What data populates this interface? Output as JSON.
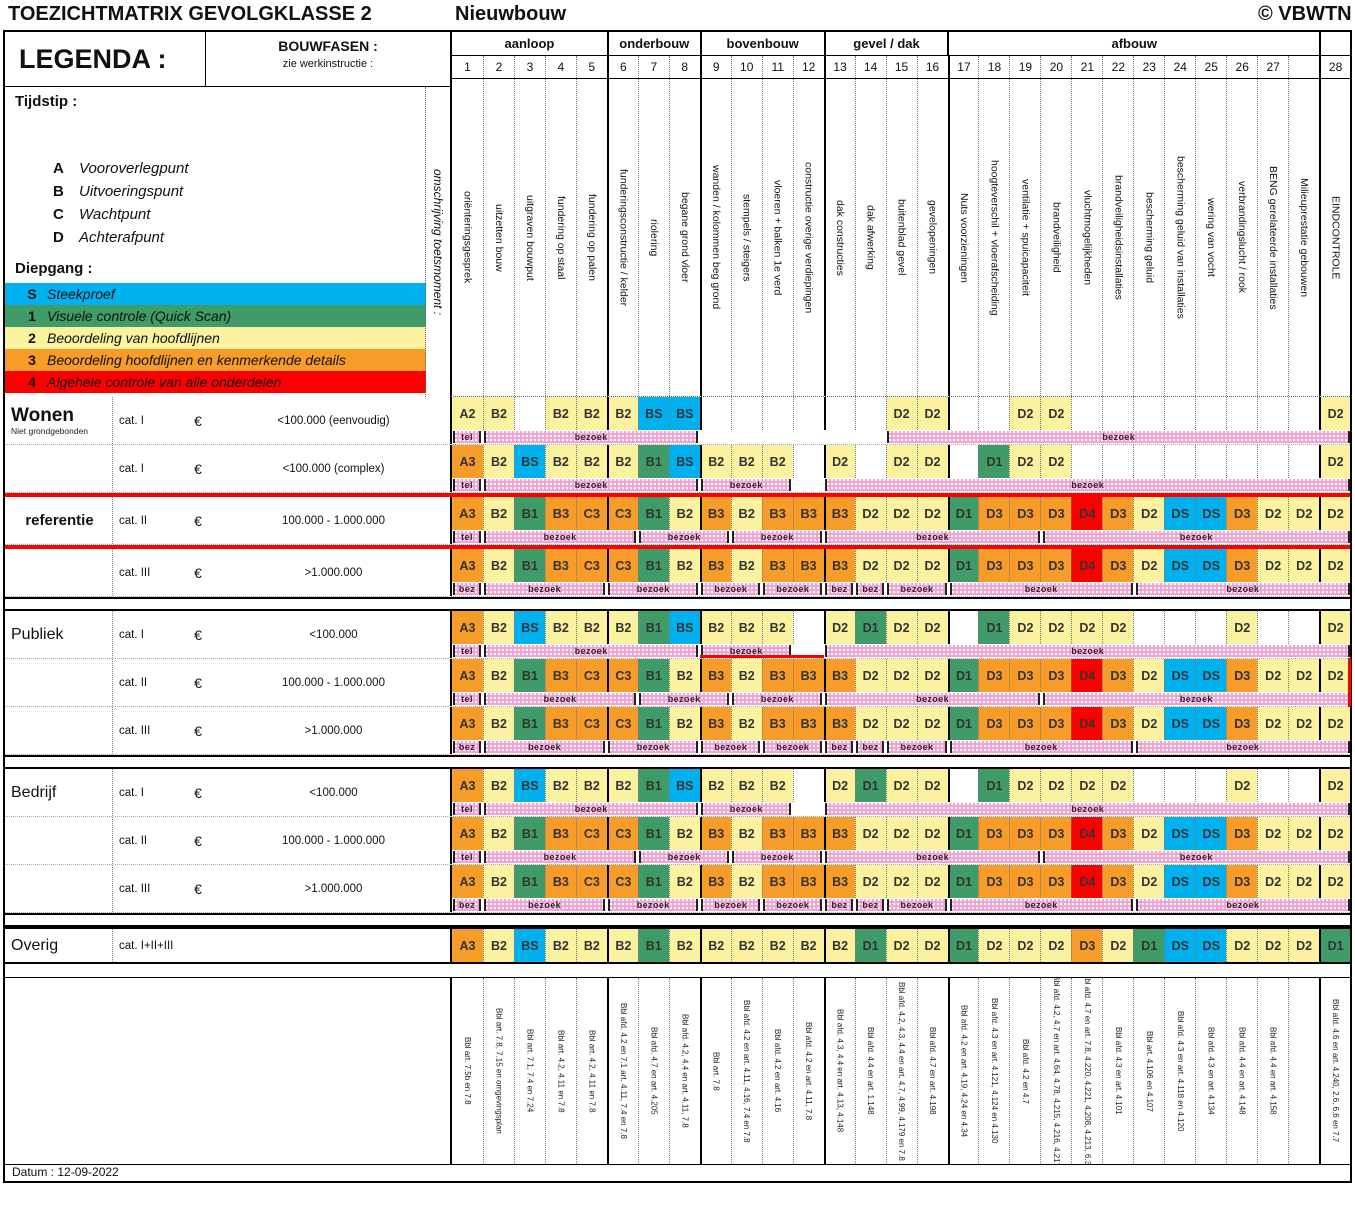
{
  "title": {
    "left": "TOEZICHTMATRIX GEVOLGKLASSE 2",
    "mid": "Nieuwbouw",
    "right": "© VBWTN"
  },
  "legend": {
    "header": "LEGENDA :",
    "bouwfasen": "BOUWFASEN :",
    "bouwfasen_sub": "zie werkinstructie :",
    "tijdstip_label": "Tijdstip :",
    "tijdstip_items": [
      {
        "code": "A",
        "label": "Vooroverlegpunt"
      },
      {
        "code": "B",
        "label": "Uitvoeringspunt"
      },
      {
        "code": "C",
        "label": "Wachtpunt"
      },
      {
        "code": "D",
        "label": "Achterafpunt"
      }
    ],
    "diepgang_label": "Diepgang :",
    "diepgang_items": [
      {
        "code": "S",
        "label": "Steekproef",
        "color": "#00B1F0"
      },
      {
        "code": "1",
        "label": "Visuele controle (Quick Scan)",
        "color": "#3F9B68"
      },
      {
        "code": "2",
        "label": "Beoordeling van hoofdlijnen",
        "color": "#FBF2A0"
      },
      {
        "code": "3",
        "label": "Beoordeling hoofdlijnen en kenmerkende details",
        "color": "#F79C29"
      },
      {
        "code": "4",
        "label": "Algehele controle van alle onderdelen",
        "color": "#FC0000"
      }
    ],
    "omschrijving": "omschrijving toetsmoment :"
  },
  "colors": {
    "S": "#00B1F0",
    "1": "#3F9B68",
    "2": "#FBF2A0",
    "3": "#F79C29",
    "4": "#FC0000"
  },
  "phases": {
    "groups": [
      {
        "label": "aanloop",
        "span": [
          1,
          5
        ]
      },
      {
        "label": "onderbouw",
        "span": [
          6,
          8
        ]
      },
      {
        "label": "bovenbouw",
        "span": [
          9,
          12
        ]
      },
      {
        "label": "gevel / dak",
        "span": [
          13,
          16
        ]
      },
      {
        "label": "afbouw",
        "span": [
          17,
          28
        ]
      },
      {
        "label": "",
        "span": [
          29,
          29
        ]
      }
    ],
    "numbers": [
      "1",
      "2",
      "3",
      "4",
      "5",
      "6",
      "7",
      "8",
      "9",
      "10",
      "11",
      "12",
      "13",
      "14",
      "15",
      "16",
      "17",
      "18",
      "19",
      "20",
      "21",
      "22",
      "23",
      "24",
      "25",
      "26",
      "27",
      "",
      "28"
    ],
    "descriptions": [
      "oriënteringsgesprek",
      "uitzetten bouw",
      "uitgraven bouwput",
      "fundering op staal",
      "fundering op palen",
      "funderingsconstructie / kelder",
      "riolering",
      "begane grond vloer",
      "wanden / kolommen beg grond",
      "stempels / steigers",
      "vloeren + balken 1e verd",
      "constructie overige verdiepingen",
      "dak constructies",
      "dak afwerking",
      "buitenblad gevel",
      "gevelopeningen",
      "Nuts voorzieningen",
      "hoogteverschil + vloerafscheiding",
      "ventilatie + spuicapaciteit",
      "brandveiligheid",
      "vluchtmogelijkheden",
      "brandveiligheidsinstallaties",
      "bescherming geluid",
      "bescherming geluid van installaties",
      "wering van vocht",
      "verbrandingslucht / rook",
      "BENG gerelateerde installaties",
      "Milieuprestatie gebouwen",
      "EINDCONTROLE"
    ],
    "articles": [
      "Bbl art. 7.5b en 7.8",
      "Bbl art. 7.8, 7.15 en omgevingsplan",
      "Bbl art. 7.1, 7.4 en 7.24",
      "Bbl art. 4.2, 4.11 en 7.8",
      "Bbl art. 4.2, 4.11 en 7.8",
      "Bbl afd. 4.2 en 7.1 art. 4.11, 7.4 en 7.8",
      "Bbl afd. 4.7 en art. 4.205",
      "Bbl afd. 4.2, 4.4 en art. 4.11, 7.8",
      "Bbl art. 7.8",
      "Bbl afd. 4.2 en art. 4.11, 4.16, 7.4 en 7.8",
      "Bbl afd. 4.2 en art. 4.16",
      "Bbl afd. 4.2 en art. 4.11, 7.8",
      "Bbl afd. 4.3, 4.4 en art. 4.13, 4.148",
      "Bbl afd. 4.4 en art. 1.148",
      "Bbl afd. 4.2, 4.3, 4.4 en art. 4.7, 4.99, 4.179 en 7.8",
      "Bbl afd. 4.7 en art. 4.198",
      "Bbl afd. 4.2 en art. 4.19, 4.24 en 4.34",
      "Bbl afd. 4.3 en art. 4.121, 4.124 en 4.130",
      "Bbl afd. 4.2 en 4.7",
      "Bbl afd. 4.2, 4.7 en art. 4.64, 4.78, 4.215, 4.216, 4.217",
      "Bbl afd. 4.7 en art. 7.8, 4.220, 4.221, 4.208, 4.213, 6.36",
      "Bbl afd. 4.3 en art. 4.101",
      "Bbl art. 4.106 en 4.107",
      "Bbl afd. 4.3 en art. 4.118 en 4.120",
      "Bbl afd. 4.3 en art. 4.134",
      "Bbl afd. 4.4 en art. 4.148",
      "Bbl afd. 4.4 en art. 4.158",
      "",
      "Bbl afd. 4.6 en art. 4.240, 2.6, 6.6 en 7.7"
    ]
  },
  "rows": [
    {
      "group": "Wonen",
      "group_sub": "Niet grondgebonden",
      "group_style": "big",
      "cat": "cat. I",
      "euro": "€",
      "range": "<100.000 (eenvoudig)",
      "cells": [
        "A2",
        "B2",
        "",
        "B2",
        "B2",
        "B2",
        "BS",
        "BS",
        "",
        "",
        "",
        "",
        "",
        "",
        "D2",
        "D2",
        "",
        "",
        "D2",
        "D2",
        "",
        "",
        "",
        "",
        "",
        "",
        "",
        "",
        "D2"
      ],
      "bands": [
        [
          1,
          1,
          "tel"
        ],
        [
          2,
          8,
          "bezoek"
        ],
        [
          15,
          29,
          "bezoek"
        ]
      ]
    },
    {
      "group": "",
      "group_sub": "",
      "group_style": "",
      "cat": "cat. I",
      "euro": "€",
      "range": "<100.000 (complex)",
      "cells": [
        "A3",
        "B2",
        "BS",
        "B2",
        "B2",
        "B2",
        "B1",
        "BS",
        "B2",
        "B2",
        "B2",
        "",
        "D2",
        "",
        "D2",
        "D2",
        "",
        "D1",
        "D2",
        "D2",
        "",
        "",
        "",
        "",
        "",
        "",
        "",
        "",
        "D2"
      ],
      "bands": [
        [
          1,
          1,
          "tel"
        ],
        [
          2,
          8,
          "bezoek"
        ],
        [
          9,
          11,
          "bezoek"
        ],
        [
          13,
          29,
          "bezoek"
        ]
      ]
    },
    {
      "group": "referentie",
      "group_sub": "",
      "group_style": "ref",
      "cat": "cat. II",
      "euro": "€",
      "range": "100.000 - 1.000.000",
      "cells": [
        "A3",
        "B2",
        "B1",
        "B3",
        "C3",
        "C3",
        "B1",
        "B2",
        "B3",
        "B2",
        "B3",
        "B3",
        "B3",
        "D2",
        "D2",
        "D2",
        "D1",
        "D3",
        "D3",
        "D3",
        "D4",
        "D3",
        "D2",
        "DS",
        "DS",
        "D3",
        "D2",
        "D2",
        "D2"
      ],
      "bands": [
        [
          1,
          1,
          "tel"
        ],
        [
          2,
          6,
          "bezoek"
        ],
        [
          7,
          9,
          "bezoek"
        ],
        [
          10,
          12,
          "bezoek"
        ],
        [
          13,
          19,
          "bezoek"
        ],
        [
          20,
          29,
          "bezoek"
        ]
      ],
      "bold": true,
      "red_top": true,
      "red_bottom": true
    },
    {
      "group": "",
      "group_sub": "",
      "group_style": "",
      "cat": "cat. III",
      "euro": "€",
      "range": ">1.000.000",
      "cells": [
        "A3",
        "B2",
        "B1",
        "B3",
        "C3",
        "C3",
        "B1",
        "B2",
        "B3",
        "B2",
        "B3",
        "B3",
        "B3",
        "D2",
        "D2",
        "D2",
        "D1",
        "D3",
        "D3",
        "D3",
        "D4",
        "D3",
        "D2",
        "DS",
        "DS",
        "D3",
        "D2",
        "D2",
        "D2"
      ],
      "bands": [
        [
          1,
          1,
          "bez"
        ],
        [
          2,
          5,
          "bezoek"
        ],
        [
          6,
          8,
          "bezoek"
        ],
        [
          9,
          10,
          "bezoek"
        ],
        [
          11,
          12,
          "bezoek"
        ],
        [
          13,
          13,
          "bez"
        ],
        [
          14,
          14,
          "bez"
        ],
        [
          15,
          16,
          "bezoek"
        ],
        [
          17,
          22,
          "bezoek"
        ],
        [
          23,
          29,
          "bezoek"
        ]
      ]
    },
    {
      "group": "Publiek",
      "group_sub": "",
      "group_style": "mid",
      "cat": "cat. I",
      "euro": "€",
      "range": "<100.000",
      "gap_before": true,
      "cells": [
        "A3",
        "B2",
        "BS",
        "B2",
        "B2",
        "B2",
        "B1",
        "BS",
        "B2",
        "B2",
        "B2",
        "",
        "D2",
        "D1",
        "D2",
        "D2",
        "",
        "D1",
        "D2",
        "D2",
        "D2",
        "D2",
        "",
        "",
        "",
        "D2",
        "",
        "",
        "D2"
      ],
      "bands": [
        [
          1,
          1,
          "tel"
        ],
        [
          2,
          8,
          "bezoek"
        ],
        [
          9,
          11,
          "bezoek"
        ],
        [
          13,
          29,
          "bezoek"
        ]
      ],
      "red_band_underline": [
        9,
        12
      ]
    },
    {
      "group": "",
      "group_sub": "",
      "group_style": "",
      "cat": "cat. II",
      "euro": "€",
      "range": "100.000 - 1.000.000",
      "cells": [
        "A3",
        "B2",
        "B1",
        "B3",
        "C3",
        "C3",
        "B1",
        "B2",
        "B3",
        "B2",
        "B3",
        "B3",
        "B3",
        "D2",
        "D2",
        "D2",
        "D1",
        "D3",
        "D3",
        "D3",
        "D4",
        "D3",
        "D2",
        "DS",
        "DS",
        "D3",
        "D2",
        "D2",
        "D2"
      ],
      "bands": [
        [
          1,
          1,
          "tel"
        ],
        [
          2,
          6,
          "bezoek"
        ],
        [
          7,
          9,
          "bezoek"
        ],
        [
          10,
          12,
          "bezoek"
        ],
        [
          13,
          19,
          "bezoek"
        ],
        [
          20,
          29,
          "bezoek"
        ]
      ],
      "red_right": true
    },
    {
      "group": "",
      "group_sub": "",
      "group_style": "",
      "cat": "cat. III",
      "euro": "€",
      "range": ">1.000.000",
      "cells": [
        "A3",
        "B2",
        "B1",
        "B3",
        "C3",
        "C3",
        "B1",
        "B2",
        "B3",
        "B2",
        "B3",
        "B3",
        "B3",
        "D2",
        "D2",
        "D2",
        "D1",
        "D3",
        "D3",
        "D3",
        "D4",
        "D3",
        "D2",
        "DS",
        "DS",
        "D3",
        "D2",
        "D2",
        "D2"
      ],
      "bands": [
        [
          1,
          1,
          "bez"
        ],
        [
          2,
          5,
          "bezoek"
        ],
        [
          6,
          8,
          "bezoek"
        ],
        [
          9,
          10,
          "bezoek"
        ],
        [
          11,
          12,
          "bezoek"
        ],
        [
          13,
          13,
          "bez"
        ],
        [
          14,
          14,
          "bez"
        ],
        [
          15,
          16,
          "bezoek"
        ],
        [
          17,
          22,
          "bezoek"
        ],
        [
          23,
          29,
          "bezoek"
        ]
      ]
    },
    {
      "group": "Bedrijf",
      "group_sub": "",
      "group_style": "mid",
      "cat": "cat. I",
      "euro": "€",
      "range": "<100.000",
      "gap_before": true,
      "cells": [
        "A3",
        "B2",
        "BS",
        "B2",
        "B2",
        "B2",
        "B1",
        "BS",
        "B2",
        "B2",
        "B2",
        "",
        "D2",
        "D1",
        "D2",
        "D2",
        "",
        "D1",
        "D2",
        "D2",
        "D2",
        "D2",
        "",
        "",
        "",
        "D2",
        "",
        "",
        "D2"
      ],
      "bands": [
        [
          1,
          1,
          "tel"
        ],
        [
          2,
          8,
          "bezoek"
        ],
        [
          9,
          11,
          "bezoek"
        ],
        [
          13,
          29,
          "bezoek"
        ]
      ]
    },
    {
      "group": "",
      "group_sub": "",
      "group_style": "",
      "cat": "cat. II",
      "euro": "€",
      "range": "100.000 - 1.000.000",
      "cells": [
        "A3",
        "B2",
        "B1",
        "B3",
        "C3",
        "C3",
        "B1",
        "B2",
        "B3",
        "B2",
        "B3",
        "B3",
        "B3",
        "D2",
        "D2",
        "D2",
        "D1",
        "D3",
        "D3",
        "D3",
        "D4",
        "D3",
        "D2",
        "DS",
        "DS",
        "D3",
        "D2",
        "D2",
        "D2"
      ],
      "bands": [
        [
          1,
          1,
          "tel"
        ],
        [
          2,
          6,
          "bezoek"
        ],
        [
          7,
          9,
          "bezoek"
        ],
        [
          10,
          12,
          "bezoek"
        ],
        [
          13,
          19,
          "bezoek"
        ],
        [
          20,
          29,
          "bezoek"
        ]
      ]
    },
    {
      "group": "",
      "group_sub": "",
      "group_style": "",
      "cat": "cat. III",
      "euro": "€",
      "range": ">1.000.000",
      "cells": [
        "A3",
        "B2",
        "B1",
        "B3",
        "C3",
        "C3",
        "B1",
        "B2",
        "B3",
        "B2",
        "B3",
        "B3",
        "B3",
        "D2",
        "D2",
        "D2",
        "D1",
        "D3",
        "D3",
        "D3",
        "D4",
        "D3",
        "D2",
        "DS",
        "DS",
        "D3",
        "D2",
        "D2",
        "D2"
      ],
      "bands": [
        [
          1,
          1,
          "bez"
        ],
        [
          2,
          5,
          "bezoek"
        ],
        [
          6,
          8,
          "bezoek"
        ],
        [
          9,
          10,
          "bezoek"
        ],
        [
          11,
          12,
          "bezoek"
        ],
        [
          13,
          13,
          "bez"
        ],
        [
          14,
          14,
          "bez"
        ],
        [
          15,
          16,
          "bezoek"
        ],
        [
          17,
          22,
          "bezoek"
        ],
        [
          23,
          29,
          "bezoek"
        ]
      ]
    },
    {
      "group": "Overig",
      "group_sub": "",
      "group_style": "mid",
      "cat": "cat. I+II+III",
      "euro": "",
      "range": "",
      "gap_before": true,
      "overig": true,
      "cells": [
        "A3",
        "B2",
        "BS",
        "B2",
        "B2",
        "B2",
        "B1",
        "B2",
        "B2",
        "B2",
        "B2",
        "B2",
        "B2",
        "D1",
        "D2",
        "D2",
        "D1",
        "D2",
        "D2",
        "D2",
        "D3",
        "D2",
        "D1",
        "DS",
        "DS",
        "D2",
        "D2",
        "D2",
        "D1"
      ],
      "bands": []
    }
  ],
  "footer": {
    "datum": "Datum : 12-09-2022"
  }
}
